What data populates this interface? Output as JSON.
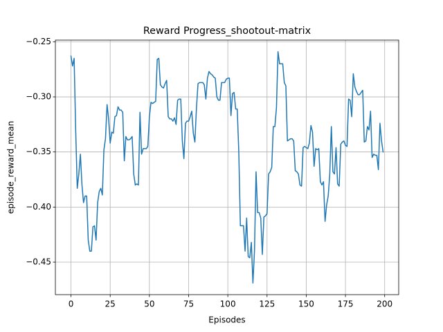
{
  "chart_data": {
    "type": "line",
    "title": "Reward Progress_shootout-matrix",
    "x_label": "Episodes",
    "y_label": "episode_reward_mean",
    "x": [
      0,
      1,
      2,
      3,
      4,
      5,
      6,
      7,
      8,
      9,
      10,
      11,
      12,
      13,
      14,
      15,
      16,
      17,
      18,
      19,
      20,
      21,
      22,
      23,
      24,
      25,
      26,
      27,
      28,
      29,
      30,
      31,
      32,
      33,
      34,
      35,
      36,
      37,
      38,
      39,
      40,
      41,
      42,
      43,
      44,
      45,
      46,
      47,
      48,
      49,
      50,
      51,
      52,
      53,
      54,
      55,
      56,
      57,
      58,
      59,
      60,
      61,
      62,
      63,
      64,
      65,
      66,
      67,
      68,
      69,
      70,
      71,
      72,
      73,
      74,
      75,
      76,
      77,
      78,
      79,
      80,
      81,
      82,
      83,
      84,
      85,
      86,
      87,
      88,
      89,
      90,
      91,
      92,
      93,
      94,
      95,
      96,
      97,
      98,
      99,
      100,
      101,
      102,
      103,
      104,
      105,
      106,
      107,
      108,
      109,
      110,
      111,
      112,
      113,
      114,
      115,
      116,
      117,
      118,
      119,
      120,
      121,
      122,
      123,
      124,
      125,
      126,
      127,
      128,
      129,
      130,
      131,
      132,
      133,
      134,
      135,
      136,
      137,
      138,
      139,
      140,
      141,
      142,
      143,
      144,
      145,
      146,
      147,
      148,
      149,
      150,
      151,
      152,
      153,
      154,
      155,
      156,
      157,
      158,
      159,
      160,
      161,
      162,
      163,
      164,
      165,
      166,
      167,
      168,
      169,
      170,
      171,
      172,
      173,
      174,
      175,
      176,
      177,
      178,
      179,
      180,
      181,
      182,
      183,
      184,
      185,
      186,
      187,
      188,
      189,
      190,
      191,
      192,
      193,
      194,
      195,
      196,
      197,
      198,
      199
    ],
    "values": [
      -0.263,
      -0.272,
      -0.265,
      -0.33,
      -0.383,
      -0.37,
      -0.352,
      -0.38,
      -0.396,
      -0.39,
      -0.39,
      -0.43,
      -0.44,
      -0.44,
      -0.418,
      -0.417,
      -0.43,
      -0.396,
      -0.386,
      -0.383,
      -0.389,
      -0.348,
      -0.338,
      -0.307,
      -0.32,
      -0.342,
      -0.332,
      -0.333,
      -0.318,
      -0.317,
      -0.309,
      -0.312,
      -0.312,
      -0.314,
      -0.358,
      -0.336,
      -0.339,
      -0.339,
      -0.338,
      -0.336,
      -0.37,
      -0.38,
      -0.379,
      -0.38,
      -0.314,
      -0.352,
      -0.347,
      -0.347,
      -0.347,
      -0.345,
      -0.318,
      -0.305,
      -0.306,
      -0.305,
      -0.304,
      -0.266,
      -0.265,
      -0.289,
      -0.291,
      -0.292,
      -0.288,
      -0.285,
      -0.318,
      -0.32,
      -0.32,
      -0.322,
      -0.319,
      -0.325,
      -0.303,
      -0.302,
      -0.302,
      -0.34,
      -0.356,
      -0.324,
      -0.322,
      -0.322,
      -0.318,
      -0.313,
      -0.333,
      -0.341,
      -0.31,
      -0.288,
      -0.287,
      -0.287,
      -0.287,
      -0.289,
      -0.302,
      -0.283,
      -0.277,
      -0.279,
      -0.28,
      -0.282,
      -0.283,
      -0.3,
      -0.303,
      -0.303,
      -0.287,
      -0.287,
      -0.287,
      -0.284,
      -0.283,
      -0.283,
      -0.317,
      -0.297,
      -0.296,
      -0.311,
      -0.311,
      -0.35,
      -0.417,
      -0.417,
      -0.417,
      -0.44,
      -0.41,
      -0.445,
      -0.446,
      -0.432,
      -0.469,
      -0.44,
      -0.368,
      -0.405,
      -0.405,
      -0.41,
      -0.443,
      -0.409,
      -0.408,
      -0.406,
      -0.37,
      -0.368,
      -0.364,
      -0.327,
      -0.327,
      -0.31,
      -0.259,
      -0.27,
      -0.27,
      -0.27,
      -0.287,
      -0.29,
      -0.34,
      -0.339,
      -0.338,
      -0.338,
      -0.34,
      -0.367,
      -0.368,
      -0.37,
      -0.38,
      -0.381,
      -0.346,
      -0.345,
      -0.346,
      -0.347,
      -0.342,
      -0.326,
      -0.332,
      -0.363,
      -0.347,
      -0.348,
      -0.347,
      -0.377,
      -0.38,
      -0.377,
      -0.413,
      -0.398,
      -0.39,
      -0.37,
      -0.327,
      -0.368,
      -0.37,
      -0.346,
      -0.379,
      -0.381,
      -0.343,
      -0.341,
      -0.34,
      -0.344,
      -0.345,
      -0.302,
      -0.303,
      -0.318,
      -0.279,
      -0.291,
      -0.295,
      -0.298,
      -0.298,
      -0.296,
      -0.294,
      -0.341,
      -0.34,
      -0.327,
      -0.33,
      -0.313,
      -0.355,
      -0.352,
      -0.353,
      -0.353,
      -0.366,
      -0.324,
      -0.34,
      -0.35
    ],
    "color": "#1f77b4",
    "xlim": [
      -9.95,
      208.95
    ],
    "xticks": [
      0,
      25,
      50,
      75,
      100,
      125,
      150,
      175,
      200
    ],
    "ylim": [
      -0.4795,
      -0.2485
    ],
    "yticks": [
      {
        "value": -0.45,
        "label": "−0.45"
      },
      {
        "value": -0.4,
        "label": "−0.40"
      },
      {
        "value": -0.35,
        "label": "−0.35"
      },
      {
        "value": -0.3,
        "label": "−0.30"
      },
      {
        "value": -0.25,
        "label": "−0.25"
      }
    ],
    "grid": true
  }
}
